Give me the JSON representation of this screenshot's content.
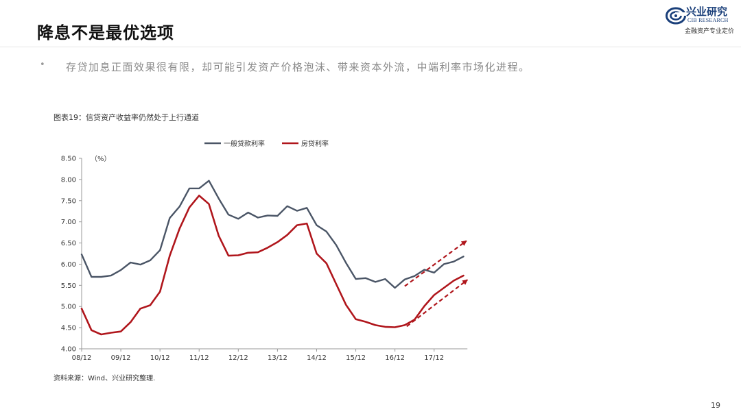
{
  "header": {
    "title": "降息不是最优选项",
    "logo_cn": "兴业研究",
    "logo_en": "CIB RESEARCH",
    "logo_tagline": "金融资产专业定价"
  },
  "bullet": {
    "marker": "•",
    "text": "存贷加息正面效果很有限，却可能引发资产价格泡沫、带来资本外流，中端利率市场化进程。"
  },
  "chart": {
    "caption": "图表19：信贷资产收益率仍然处于上行通道",
    "unit_label": "（%）",
    "source": "资料来源：Wind、兴业研究整理."
  },
  "chart_data": {
    "type": "line",
    "title": "图表19：信贷资产收益率仍然处于上行通道",
    "ylabel": "（%）",
    "xlabel": "",
    "ylim": [
      4.0,
      8.5
    ],
    "yticks": [
      "4.00",
      "4.50",
      "5.00",
      "5.50",
      "6.00",
      "6.50",
      "7.00",
      "7.50",
      "8.00",
      "8.50"
    ],
    "x_tick_labels": [
      "08/12",
      "09/12",
      "10/12",
      "11/12",
      "12/12",
      "13/12",
      "14/12",
      "15/12",
      "16/12",
      "17/12"
    ],
    "x_points": 37,
    "legend_position": "top",
    "colors": {
      "general_loan": "#4a5566",
      "mortgage": "#b0161c",
      "trend_arrow": "#b0161c"
    },
    "series": [
      {
        "name": "一般贷款利率",
        "values": [
          6.23,
          5.7,
          5.7,
          5.73,
          5.86,
          6.04,
          5.99,
          6.09,
          6.33,
          7.09,
          7.36,
          7.79,
          7.79,
          7.97,
          7.55,
          7.17,
          7.07,
          7.22,
          7.1,
          7.15,
          7.14,
          7.37,
          7.26,
          7.33,
          6.92,
          6.77,
          6.45,
          6.03,
          5.65,
          5.67,
          5.58,
          5.65,
          5.44,
          5.64,
          5.72,
          5.87,
          5.8
        ]
      },
      {
        "name": "房贷利率",
        "values": [
          4.95,
          4.44,
          4.34,
          4.38,
          4.41,
          4.63,
          4.95,
          5.03,
          5.35,
          6.2,
          6.84,
          7.34,
          7.62,
          7.42,
          6.67,
          6.2,
          6.21,
          6.27,
          6.28,
          6.39,
          6.52,
          6.69,
          6.92,
          6.96,
          6.25,
          6.02,
          5.53,
          5.04,
          4.7,
          4.64,
          4.56,
          4.52,
          4.51,
          4.56,
          4.69,
          5.01,
          5.27
        ]
      }
    ],
    "extension": {
      "一般贷款利率": [
        6.0,
        6.06,
        6.18
      ],
      "房贷利率": [
        5.44,
        5.61,
        5.73
      ]
    },
    "annotations": [
      {
        "type": "dashed-arrow",
        "from": [
          33,
          5.48
        ],
        "to": [
          39.3,
          6.55
        ]
      },
      {
        "type": "dashed-arrow",
        "from": [
          33.2,
          4.53
        ],
        "to": [
          39.4,
          5.63
        ]
      }
    ]
  },
  "footer": {
    "page_number": "19"
  }
}
